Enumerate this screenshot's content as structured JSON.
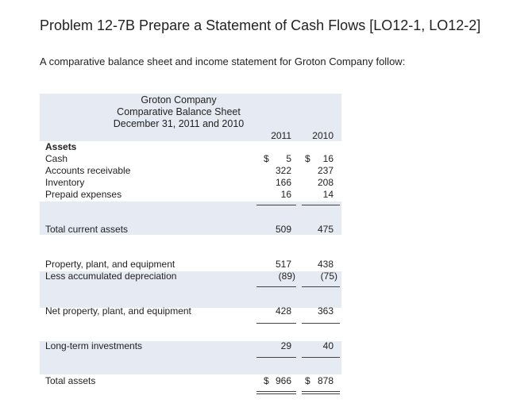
{
  "problem": {
    "title": "Problem 12-7B Prepare a Statement of Cash Flows [LO12-1, LO12-2]",
    "intro": "A comparative balance sheet and income statement for Groton Company follow:"
  },
  "sheet": {
    "company": "Groton Company",
    "statement": "Comparative Balance Sheet",
    "date": "December 31, 2011 and 2010",
    "col_2011": "2011",
    "col_2010": "2010",
    "currency": "$",
    "assets_heading": "Assets",
    "cash": {
      "label": "Cash",
      "y2011": "5",
      "y2010": "16"
    },
    "receivables": {
      "label": "Accounts receivable",
      "y2011": "322",
      "y2010": "237"
    },
    "inventory": {
      "label": "Inventory",
      "y2011": "166",
      "y2010": "208"
    },
    "prepaid": {
      "label": "Prepaid expenses",
      "y2011": "16",
      "y2010": "14"
    },
    "total_current": {
      "label": "Total current assets",
      "y2011": "509",
      "y2010": "475"
    },
    "ppe": {
      "label": "Property, plant, and equipment",
      "y2011": "517",
      "y2010": "438"
    },
    "accum_dep": {
      "label": "Less accumulated depreciation",
      "y2011": "(89)",
      "y2010": "(75)"
    },
    "net_ppe": {
      "label": "Net property, plant, and equipment",
      "y2011": "428",
      "y2010": "363"
    },
    "lt_investments": {
      "label": "Long-term investments",
      "y2011": "29",
      "y2010": "40"
    },
    "total_assets": {
      "label": "Total assets",
      "y2011": "966",
      "y2010": "878"
    }
  }
}
